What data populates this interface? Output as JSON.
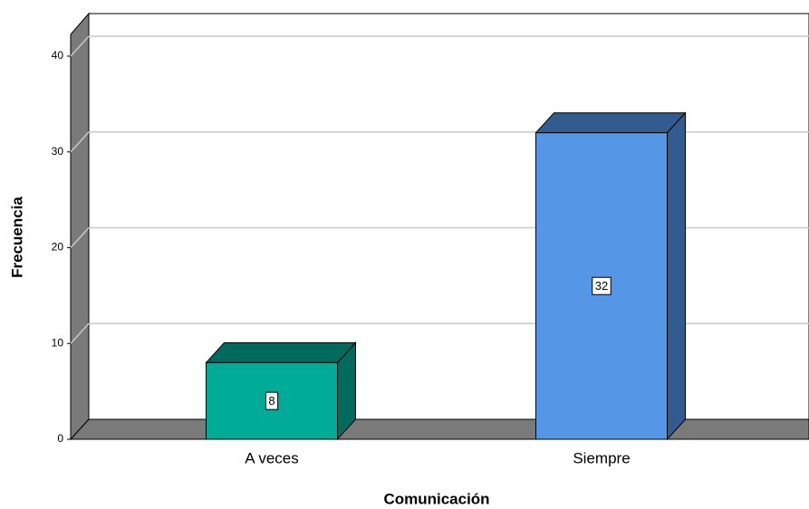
{
  "chart_data": {
    "type": "bar",
    "x_label": "Comunicación",
    "y_label": "Frecuencia",
    "categories": [
      "A veces",
      "Siempre"
    ],
    "values": [
      8,
      32
    ],
    "colors": [
      "#00ac97",
      "#5596e6"
    ],
    "side_colors": [
      "#006a5c",
      "#325b8f"
    ],
    "ylim": [
      0,
      40
    ],
    "yticks": [
      0,
      10,
      20,
      30,
      40
    ],
    "grid": true
  }
}
